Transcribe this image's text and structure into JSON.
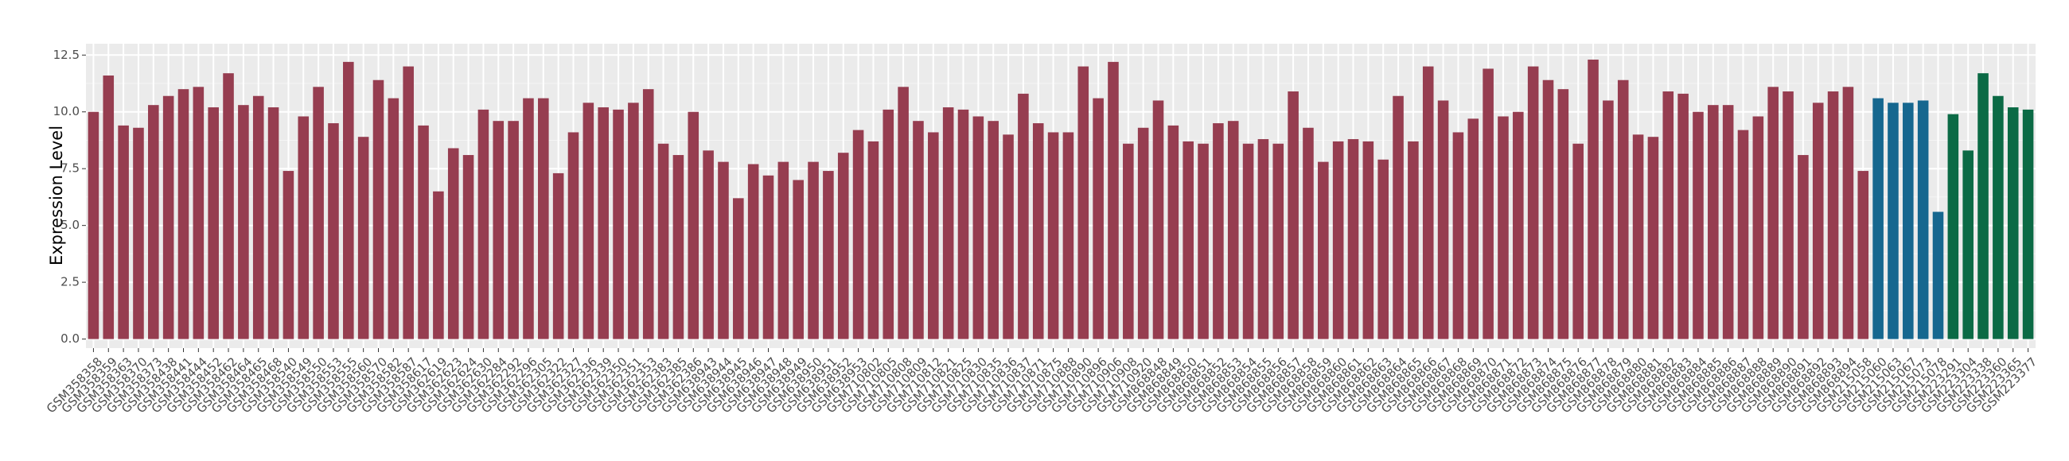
{
  "chart_data": {
    "type": "bar",
    "y_label": "Expression Level",
    "ylim": [
      -0.4,
      13.0
    ],
    "yticks": [
      {
        "value": 0,
        "label": "0.0"
      },
      2.5,
      {
        "value": 5,
        "label": "5.0"
      },
      7.5,
      {
        "value": 10,
        "label": "10.0"
      },
      12.5
    ],
    "grid": true,
    "categories": [
      "GSM358358",
      "GSM358359",
      "GSM358363",
      "GSM358370",
      "GSM358373",
      "GSM358438",
      "GSM358441",
      "GSM358444",
      "GSM358452",
      "GSM358462",
      "GSM358464",
      "GSM358465",
      "GSM358468",
      "GSM358540",
      "GSM358549",
      "GSM358550",
      "GSM358553",
      "GSM358555",
      "GSM358560",
      "GSM358570",
      "GSM358582",
      "GSM358587",
      "GSM358617",
      "GSM362619",
      "GSM362623",
      "GSM362624",
      "GSM362630",
      "GSM362284",
      "GSM362292",
      "GSM362296",
      "GSM362305",
      "GSM362322",
      "GSM362327",
      "GSM362336",
      "GSM362339",
      "GSM362350",
      "GSM362351",
      "GSM362353",
      "GSM362383",
      "GSM362385",
      "GSM362386",
      "GSM638943",
      "GSM638944",
      "GSM638945",
      "GSM638946",
      "GSM638947",
      "GSM638948",
      "GSM638949",
      "GSM638950",
      "GSM638951",
      "GSM638952",
      "GSM638953",
      "GSM710802",
      "GSM710805",
      "GSM710808",
      "GSM710809",
      "GSM710812",
      "GSM710821",
      "GSM710825",
      "GSM710830",
      "GSM710835",
      "GSM710836",
      "GSM710837",
      "GSM710871",
      "GSM710875",
      "GSM710888",
      "GSM710890",
      "GSM710896",
      "GSM710906",
      "GSM710908",
      "GSM710920",
      "GSM868848",
      "GSM868849",
      "GSM868850",
      "GSM868851",
      "GSM868852",
      "GSM868853",
      "GSM868854",
      "GSM868855",
      "GSM868856",
      "GSM868857",
      "GSM868858",
      "GSM868859",
      "GSM868860",
      "GSM868861",
      "GSM868862",
      "GSM868863",
      "GSM868864",
      "GSM868865",
      "GSM868866",
      "GSM868867",
      "GSM868868",
      "GSM868869",
      "GSM868870",
      "GSM868871",
      "GSM868872",
      "GSM868873",
      "GSM868874",
      "GSM868875",
      "GSM868876",
      "GSM868877",
      "GSM868878",
      "GSM868879",
      "GSM868880",
      "GSM868881",
      "GSM868882",
      "GSM868883",
      "GSM868884",
      "GSM868885",
      "GSM868886",
      "GSM868887",
      "GSM868888",
      "GSM868889",
      "GSM868890",
      "GSM868891",
      "GSM868892",
      "GSM868893",
      "GSM868894",
      "GSM215058",
      "GSM215060",
      "GSM215063",
      "GSM215067",
      "GSM215073",
      "GSM215078",
      "GSM223291",
      "GSM223304",
      "GSM223338",
      "GSM223360",
      "GSM223365",
      "GSM223377"
    ],
    "values": [
      10.0,
      11.6,
      9.4,
      9.3,
      10.3,
      10.7,
      11.0,
      11.1,
      10.2,
      11.7,
      10.3,
      10.7,
      10.2,
      7.4,
      9.8,
      11.1,
      9.5,
      12.2,
      8.9,
      11.4,
      10.6,
      12.0,
      9.4,
      6.5,
      8.4,
      8.1,
      10.1,
      9.6,
      9.6,
      10.6,
      10.6,
      7.3,
      9.1,
      10.4,
      10.2,
      10.1,
      10.4,
      11.0,
      8.6,
      8.1,
      10.0,
      8.3,
      7.8,
      6.2,
      7.7,
      7.2,
      7.8,
      7.0,
      7.8,
      7.4,
      8.2,
      9.2,
      8.7,
      10.1,
      11.1,
      9.6,
      9.1,
      10.2,
      10.1,
      9.8,
      9.6,
      9.0,
      10.8,
      9.5,
      9.1,
      9.1,
      12.0,
      10.6,
      12.2,
      8.6,
      9.3,
      10.5,
      9.4,
      8.7,
      8.6,
      9.5,
      9.6,
      8.6,
      8.8,
      8.6,
      10.9,
      9.3,
      7.8,
      8.7,
      8.8,
      8.7,
      7.9,
      10.7,
      8.7,
      12.0,
      10.5,
      9.1,
      9.7,
      11.9,
      9.8,
      10.0,
      12.0,
      11.4,
      11.0,
      8.6,
      12.3,
      10.5,
      11.4,
      9.0,
      8.9,
      10.9,
      10.8,
      10.0,
      10.3,
      10.3,
      9.2,
      9.8,
      11.1,
      10.9,
      8.1,
      10.4,
      10.9,
      11.1,
      7.4,
      10.6,
      10.4,
      10.4,
      10.5,
      5.6,
      9.9,
      8.3,
      11.7,
      10.7,
      10.2,
      10.1
    ],
    "colors": [
      "#963d50",
      "#963d50",
      "#963d50",
      "#963d50",
      "#963d50",
      "#963d50",
      "#963d50",
      "#963d50",
      "#963d50",
      "#963d50",
      "#963d50",
      "#963d50",
      "#963d50",
      "#963d50",
      "#963d50",
      "#963d50",
      "#963d50",
      "#963d50",
      "#963d50",
      "#963d50",
      "#963d50",
      "#963d50",
      "#963d50",
      "#963d50",
      "#963d50",
      "#963d50",
      "#963d50",
      "#963d50",
      "#963d50",
      "#963d50",
      "#963d50",
      "#963d50",
      "#963d50",
      "#963d50",
      "#963d50",
      "#963d50",
      "#963d50",
      "#963d50",
      "#963d50",
      "#963d50",
      "#963d50",
      "#963d50",
      "#963d50",
      "#963d50",
      "#963d50",
      "#963d50",
      "#963d50",
      "#963d50",
      "#963d50",
      "#963d50",
      "#963d50",
      "#963d50",
      "#963d50",
      "#963d50",
      "#963d50",
      "#963d50",
      "#963d50",
      "#963d50",
      "#963d50",
      "#963d50",
      "#963d50",
      "#963d50",
      "#963d50",
      "#963d50",
      "#963d50",
      "#963d50",
      "#963d50",
      "#963d50",
      "#963d50",
      "#963d50",
      "#963d50",
      "#963d50",
      "#963d50",
      "#963d50",
      "#963d50",
      "#963d50",
      "#963d50",
      "#963d50",
      "#963d50",
      "#963d50",
      "#963d50",
      "#963d50",
      "#963d50",
      "#963d50",
      "#963d50",
      "#963d50",
      "#963d50",
      "#963d50",
      "#963d50",
      "#963d50",
      "#963d50",
      "#963d50",
      "#963d50",
      "#963d50",
      "#963d50",
      "#963d50",
      "#963d50",
      "#963d50",
      "#963d50",
      "#963d50",
      "#963d50",
      "#963d50",
      "#963d50",
      "#963d50",
      "#963d50",
      "#963d50",
      "#963d50",
      "#963d50",
      "#963d50",
      "#963d50",
      "#963d50",
      "#963d50",
      "#963d50",
      "#963d50",
      "#963d50",
      "#963d50",
      "#963d50",
      "#963d50",
      "#963d50",
      "#16678f",
      "#16678f",
      "#16678f",
      "#16678f",
      "#16678f",
      "#0b6a45",
      "#0b6a45",
      "#0b6a45",
      "#0b6a45",
      "#0b6a45",
      "#0b6a45"
    ]
  }
}
